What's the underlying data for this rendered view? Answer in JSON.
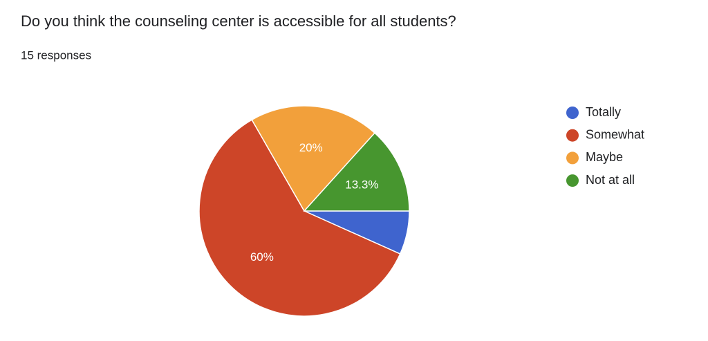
{
  "chart_data": {
    "type": "pie",
    "title": "Do you think the counseling center is accessible for all students?",
    "subtitle": "15 responses",
    "categories": [
      "Totally",
      "Somewhat",
      "Maybe",
      "Not at all"
    ],
    "values": [
      6.7,
      60,
      20,
      13.3
    ],
    "value_labels": [
      null,
      "60%",
      "20%",
      "13.3%"
    ],
    "colors": [
      "#3f64ce",
      "#cd4528",
      "#f2a03b",
      "#47962f"
    ],
    "legend": "right"
  }
}
